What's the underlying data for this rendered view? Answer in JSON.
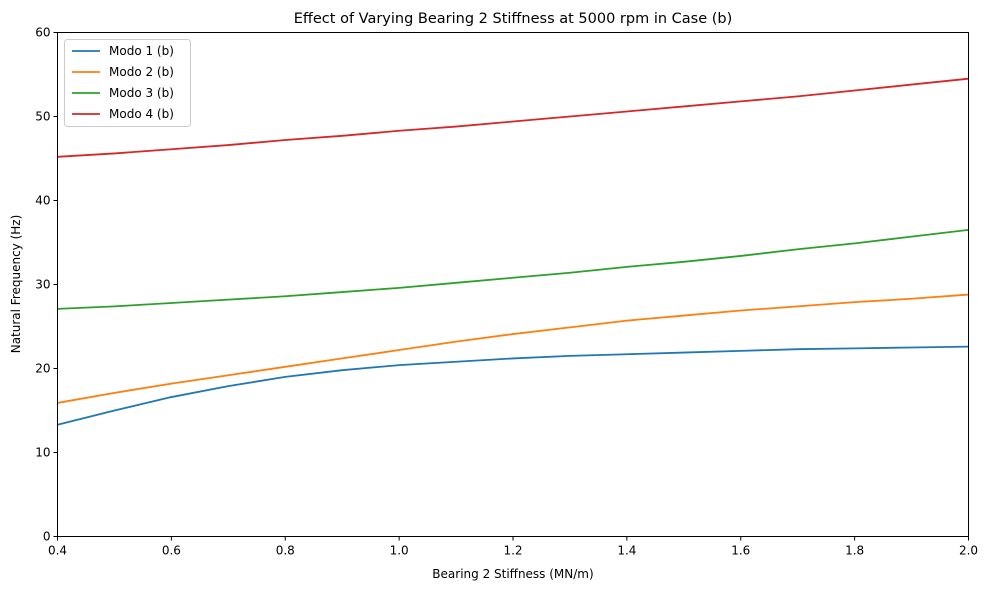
{
  "chart_data": {
    "type": "line",
    "title": "Effect of Varying Bearing 2 Stiffness at 5000 rpm in Case (b)",
    "xlabel": "Bearing 2 Stiffness (MN/m)",
    "ylabel": "Natural Frequency (Hz)",
    "xlim": [
      0.4,
      2.0
    ],
    "ylim": [
      0,
      60
    ],
    "xticks": [
      "0.4",
      "0.6",
      "0.8",
      "1.0",
      "1.2",
      "1.4",
      "1.6",
      "1.8",
      "2.0"
    ],
    "yticks": [
      "0",
      "10",
      "20",
      "30",
      "40",
      "50",
      "60"
    ],
    "grid": false,
    "legend_position": "top-left",
    "x": [
      0.4,
      0.5,
      0.6,
      0.7,
      0.8,
      0.9,
      1.0,
      1.1,
      1.2,
      1.3,
      1.4,
      1.5,
      1.6,
      1.7,
      1.8,
      1.9,
      2.0
    ],
    "series": [
      {
        "name": "Modo 1 (b)",
        "color": "#1f77b4",
        "values": [
          13.3,
          15.0,
          16.6,
          17.9,
          19.0,
          19.8,
          20.4,
          20.8,
          21.2,
          21.5,
          21.7,
          21.9,
          22.1,
          22.3,
          22.4,
          22.5,
          22.6
        ]
      },
      {
        "name": "Modo 2 (b)",
        "color": "#ff7f0e",
        "values": [
          15.9,
          17.1,
          18.2,
          19.2,
          20.2,
          21.2,
          22.2,
          23.2,
          24.1,
          24.9,
          25.7,
          26.3,
          26.9,
          27.4,
          27.9,
          28.3,
          28.8
        ]
      },
      {
        "name": "Modo 3 (b)",
        "color": "#2ca02c",
        "values": [
          27.1,
          27.4,
          27.8,
          28.2,
          28.6,
          29.1,
          29.6,
          30.2,
          30.8,
          31.4,
          32.1,
          32.7,
          33.4,
          34.2,
          34.9,
          35.7,
          36.5
        ]
      },
      {
        "name": "Modo 4 (b)",
        "color": "#d62728",
        "values": [
          45.2,
          45.6,
          46.1,
          46.6,
          47.2,
          47.7,
          48.3,
          48.8,
          49.4,
          50.0,
          50.6,
          51.2,
          51.8,
          52.4,
          53.1,
          53.8,
          54.5
        ]
      }
    ]
  }
}
